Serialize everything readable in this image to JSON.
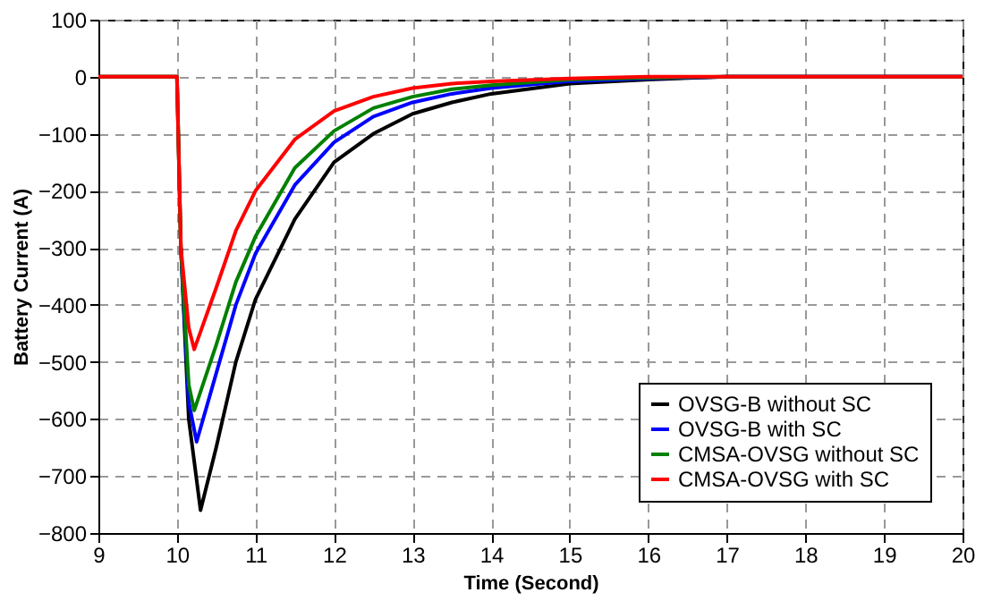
{
  "chart_data": {
    "type": "line",
    "xlabel": "Time (Second)",
    "ylabel": "Battery Current (A)",
    "xlim": [
      9,
      20
    ],
    "xticks": [
      9,
      10,
      11,
      12,
      13,
      14,
      15,
      16,
      17,
      18,
      19,
      20
    ],
    "ylim": [
      -800,
      100
    ],
    "yticks": [
      -800,
      -700,
      -600,
      -500,
      -400,
      -300,
      -200,
      -100,
      0,
      100
    ],
    "grid": true,
    "legend": "bottom right",
    "line_style": "solid",
    "marker": "none",
    "series": [
      {
        "name": "OVSG-B without SC",
        "color": "#000000",
        "x": [
          9,
          10,
          10.05,
          10.15,
          10.3,
          10.5,
          10.75,
          11,
          11.5,
          12,
          12.5,
          13,
          13.5,
          14,
          15,
          16,
          17,
          20
        ],
        "values": [
          0,
          0,
          -300,
          -600,
          -760,
          -650,
          -500,
          -390,
          -250,
          -150,
          -100,
          -65,
          -45,
          -30,
          -12,
          -5,
          0,
          0
        ]
      },
      {
        "name": "OVSG-B with SC",
        "color": "#0000ff",
        "x": [
          10.05,
          10.15,
          10.25,
          10.5,
          10.75,
          11,
          11.5,
          12,
          12.5,
          13,
          13.5,
          14,
          15,
          16,
          17,
          20
        ],
        "values": [
          -300,
          -570,
          -640,
          -520,
          -400,
          -310,
          -190,
          -115,
          -70,
          -45,
          -30,
          -20,
          -8,
          -3,
          0,
          0
        ]
      },
      {
        "name": "CMSA-OVSG without SC",
        "color": "#008000",
        "x": [
          9,
          10,
          10.05,
          10.15,
          10.22,
          10.5,
          10.75,
          11,
          11.5,
          12,
          12.5,
          13,
          13.5,
          14,
          15,
          16,
          17,
          20
        ],
        "values": [
          0,
          0,
          -300,
          -540,
          -585,
          -470,
          -360,
          -280,
          -160,
          -95,
          -55,
          -35,
          -22,
          -15,
          -5,
          -2,
          0,
          0
        ]
      },
      {
        "name": "CMSA-OVSG with SC",
        "color": "#ff0000",
        "x": [
          9,
          10,
          10.05,
          10.15,
          10.22,
          10.5,
          10.75,
          11,
          11.5,
          12,
          12.5,
          13,
          13.5,
          14,
          15,
          16,
          20
        ],
        "values": [
          0,
          0,
          -300,
          -440,
          -478,
          -370,
          -270,
          -200,
          -110,
          -60,
          -35,
          -20,
          -12,
          -8,
          -3,
          0,
          0
        ]
      }
    ]
  }
}
